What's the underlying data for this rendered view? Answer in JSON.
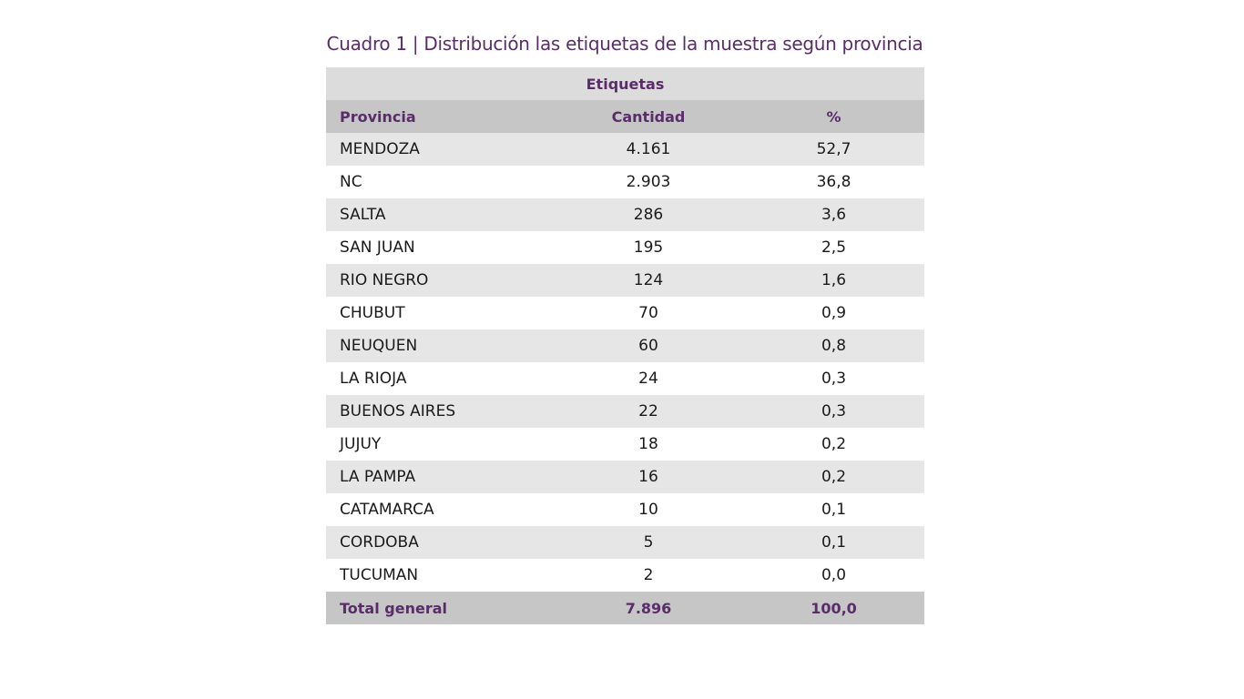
{
  "title": "Cuadro 1 | Distribución las etiquetas de la muestra según provincia",
  "table": {
    "group_header": "Etiquetas",
    "columns": [
      "Provincia",
      "Cantidad",
      "%"
    ],
    "rows": [
      [
        "MENDOZA",
        "4.161",
        "52,7"
      ],
      [
        "NC",
        "2.903",
        "36,8"
      ],
      [
        "SALTA",
        "286",
        "3,6"
      ],
      [
        "SAN JUAN",
        "195",
        "2,5"
      ],
      [
        "RIO NEGRO",
        "124",
        "1,6"
      ],
      [
        "CHUBUT",
        "70",
        "0,9"
      ],
      [
        "NEUQUEN",
        "60",
        "0,8"
      ],
      [
        "LA RIOJA",
        "24",
        "0,3"
      ],
      [
        "BUENOS AIRES",
        "22",
        "0,3"
      ],
      [
        "JUJUY",
        "18",
        "0,2"
      ],
      [
        "LA PAMPA",
        "16",
        "0,2"
      ],
      [
        "CATAMARCA",
        "10",
        "0,1"
      ],
      [
        "CORDOBA",
        "5",
        "0,1"
      ],
      [
        "TUCUMAN",
        "2",
        "0,0"
      ]
    ],
    "total": [
      "Total general",
      "7.896",
      "100,0"
    ]
  },
  "colors": {
    "accent_purple": "#5a2d6a",
    "header_gray": "#c6c6c6",
    "group_gray": "#dcdcdc",
    "stripe_gray": "#e6e6e6"
  }
}
